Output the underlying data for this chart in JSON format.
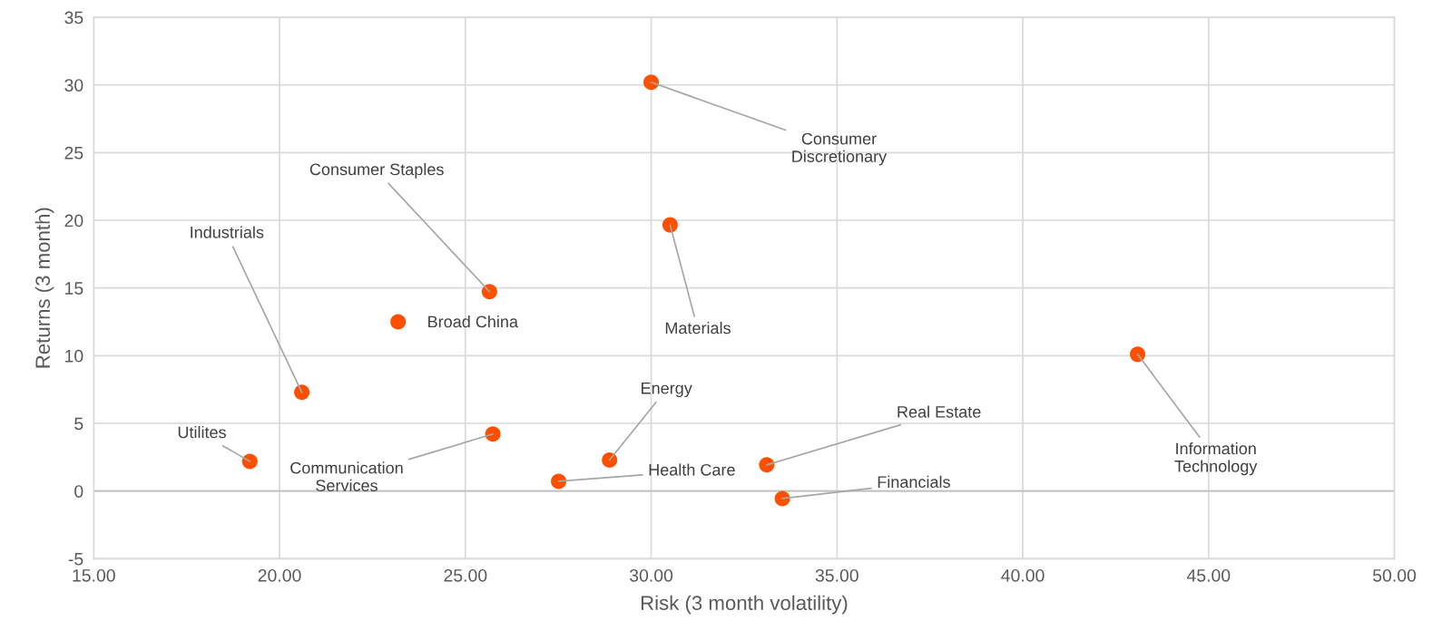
{
  "chart_data": {
    "type": "scatter",
    "xlabel": "Risk (3 month volatility)",
    "ylabel": "Returns (3 month)",
    "x": [
      19.2,
      20.6,
      23.19,
      25.65,
      25.74,
      28.88,
      27.51,
      30.0,
      30.51,
      33.11,
      33.53,
      43.09
    ],
    "series": [
      {
        "color": "#fe5000",
        "values": [
          2.19,
          7.29,
          12.5,
          14.73,
          4.21,
          2.29,
          0.72,
          30.2,
          19.66,
          1.93,
          -0.55,
          10.1
        ]
      }
    ],
    "annotations": [
      {
        "text": "Utilites",
        "x": 19.2,
        "y": 2.19
      },
      {
        "text": "Industrials",
        "x": 20.6,
        "y": 7.29
      },
      {
        "text": "Broad China",
        "x": 23.19,
        "y": 12.5
      },
      {
        "text": "Consumer Staples",
        "x": 25.65,
        "y": 14.73
      },
      {
        "text": "Communication\nServices",
        "x": 25.74,
        "y": 4.21
      },
      {
        "text": "Energy",
        "x": 28.88,
        "y": 2.29
      },
      {
        "text": "Health Care",
        "x": 27.51,
        "y": 0.72
      },
      {
        "text": "Consumer\nDiscretionary",
        "x": 30.0,
        "y": 30.2
      },
      {
        "text": "Materials",
        "x": 30.51,
        "y": 19.66
      },
      {
        "text": "Real Estate",
        "x": 33.11,
        "y": 1.93
      },
      {
        "text": "Financials",
        "x": 33.53,
        "y": -0.55
      },
      {
        "text": "Information\nTechnology",
        "x": 43.09,
        "y": 10.1
      }
    ],
    "xlim": [
      15,
      50
    ],
    "ylim": [
      -5,
      35
    ],
    "xticks": [
      {
        "value": 15,
        "label": "15.00"
      },
      {
        "value": 20,
        "label": "20.00"
      },
      {
        "value": 25,
        "label": "25.00"
      },
      {
        "value": 30,
        "label": "30.00"
      },
      {
        "value": 35,
        "label": "35.00"
      },
      {
        "value": 40,
        "label": "40.00"
      },
      {
        "value": 45,
        "label": "45.00"
      },
      {
        "value": 50,
        "label": "50.00"
      }
    ],
    "yticks": [
      {
        "value": -5,
        "label": "-5"
      },
      0,
      5,
      10,
      15,
      20,
      25,
      30,
      35
    ],
    "grid": true,
    "marker": "circle"
  }
}
